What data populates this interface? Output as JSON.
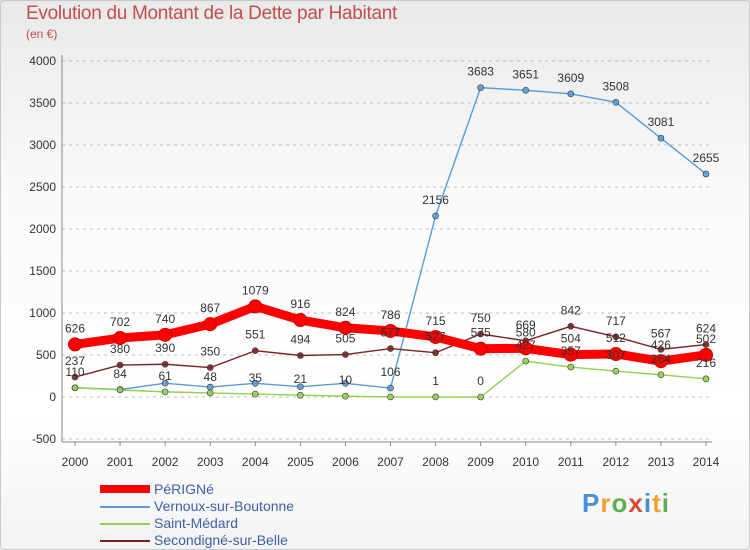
{
  "title": "Evolution du Montant de la Dette par Habitant",
  "unit": "(en €)",
  "logo": {
    "letters": [
      "P",
      "r",
      "o",
      "x",
      "i",
      "t",
      "i"
    ],
    "colors": [
      "#4a8fd6",
      "#f0a030",
      "#5ab04e",
      "#d84b3a",
      "#4a8fd6",
      "#f0a030",
      "#5ab04e"
    ]
  },
  "chart_data": {
    "type": "line",
    "title": "Evolution du Montant de la Dette par Habitant",
    "ylabel": "(en €)",
    "xlabel": "",
    "ylim": [
      -500,
      4000
    ],
    "yticks": [
      -500,
      0,
      500,
      1000,
      1500,
      2000,
      2500,
      3000,
      3500,
      4000
    ],
    "grid": "horizontal dashed",
    "legend": "bottom-left",
    "categories": [
      "2000",
      "2001",
      "2002",
      "2003",
      "2004",
      "2005",
      "2006",
      "2007",
      "2008",
      "2009",
      "2010",
      "2011",
      "2012",
      "2013",
      "2014"
    ],
    "series": [
      {
        "name": "PéRIGNé",
        "color": "#ff0000",
        "values": [
          626,
          702,
          740,
          867,
          1079,
          916,
          824,
          786,
          715,
          575,
          580,
          504,
          512,
          426,
          502
        ]
      },
      {
        "name": "Vernoux-sur-Boutonne",
        "color": "#5b9bd5",
        "values": [
          110,
          88,
          164,
          118,
          163,
          123,
          163,
          106,
          2156,
          3683,
          3651,
          3609,
          3508,
          3081,
          2655
        ]
      },
      {
        "name": "Saint-Médard",
        "color": "#92d050",
        "values": [
          110,
          84,
          61,
          48,
          35,
          21,
          10,
          1,
          1,
          0,
          427,
          357,
          307,
          264,
          216
        ]
      },
      {
        "name": "Secondigné-sur-Belle",
        "color": "#7b2323",
        "values": [
          237,
          380,
          390,
          350,
          551,
          494,
          505,
          577,
          527,
          750,
          669,
          842,
          717,
          567,
          624
        ]
      }
    ],
    "point_labels": {
      "PéRIGNé": [
        "626",
        "702",
        "740",
        "867",
        "1079",
        "916",
        "824",
        "786",
        "715",
        "575",
        "580",
        "504",
        "512",
        "426",
        "502"
      ],
      "Vernoux-sur-Boutonne": [
        "",
        "",
        "",
        "",
        "",
        "",
        "",
        "106",
        "2156",
        "3683",
        "3651",
        "3609",
        "3508",
        "3081",
        "2655"
      ],
      "Saint-Médard": [
        "110",
        "84",
        "61",
        "48",
        "35",
        "21",
        "10",
        "",
        "1",
        "0",
        "427",
        "357",
        "307",
        "264",
        "216"
      ],
      "Secondigné-sur-Belle": [
        "237",
        "380",
        "390",
        "350",
        "551",
        "494",
        "505",
        "577",
        "527",
        "750",
        "669",
        "842",
        "717",
        "567",
        "624"
      ]
    }
  }
}
